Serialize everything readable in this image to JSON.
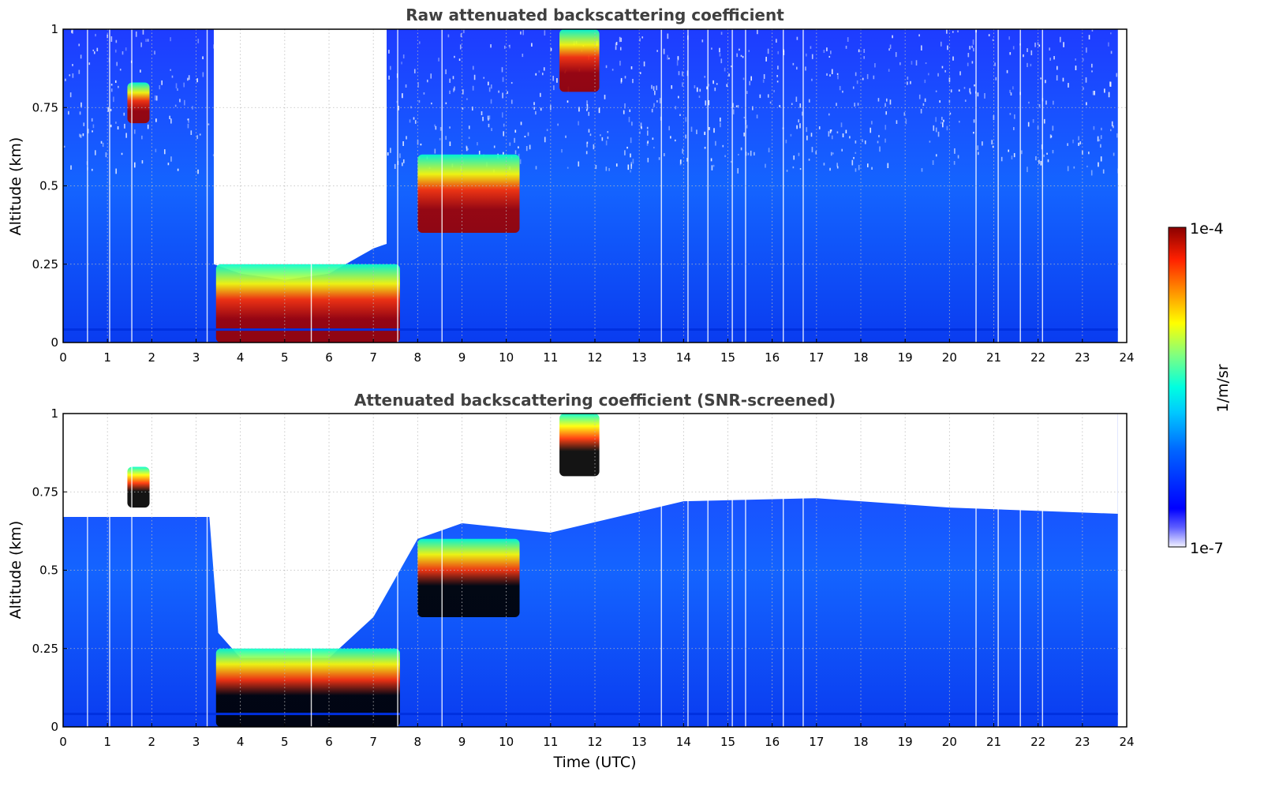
{
  "chart_data": [
    {
      "type": "heatmap",
      "title": "Raw attenuated backscattering coefficient",
      "xlabel": "",
      "ylabel": "Altitude (km)",
      "xlim": [
        0,
        24
      ],
      "ylim": [
        0,
        1
      ],
      "x_ticks": [
        "0",
        "1",
        "2",
        "3",
        "4",
        "5",
        "6",
        "7",
        "8",
        "9",
        "10",
        "11",
        "12",
        "13",
        "14",
        "15",
        "16",
        "17",
        "18",
        "19",
        "20",
        "21",
        "22",
        "23",
        "24"
      ],
      "y_ticks": [
        "0",
        "0.25",
        "0.5",
        "0.75",
        "1"
      ],
      "grid": true,
      "data_end_hour": 23.8,
      "boundary_layer_top_km": [
        {
          "t": 3.4,
          "z": 0.25
        },
        {
          "t": 4.0,
          "z": 0.22
        },
        {
          "t": 5.0,
          "z": 0.2
        },
        {
          "t": 6.0,
          "z": 0.22
        },
        {
          "t": 7.0,
          "z": 0.3
        },
        {
          "t": 8.0,
          "z": 0.35
        },
        {
          "t": 9.0,
          "z": 0.45
        },
        {
          "t": 10.0,
          "z": 0.5
        }
      ],
      "strong_echo_regions": [
        {
          "t_start": 1.45,
          "t_end": 1.95,
          "z_low": 0.7,
          "z_high": 0.83
        },
        {
          "t_start": 3.45,
          "t_end": 7.6,
          "z_low": 0.0,
          "z_high": 0.25
        },
        {
          "t_start": 8.0,
          "t_end": 10.3,
          "z_low": 0.35,
          "z_high": 0.6
        },
        {
          "t_start": 11.2,
          "t_end": 12.1,
          "z_low": 0.8,
          "z_high": 1.0
        }
      ],
      "clear_air_regions": [
        {
          "t_start": 3.4,
          "t_end": 7.3,
          "z_low": 0.22,
          "z_high": 1.0
        }
      ]
    },
    {
      "type": "heatmap",
      "title": "Attenuated backscattering coefficient (SNR-screened)",
      "xlabel": "Time (UTC)",
      "ylabel": "Altitude (km)",
      "xlim": [
        0,
        24
      ],
      "ylim": [
        0,
        1
      ],
      "x_ticks": [
        "0",
        "1",
        "2",
        "3",
        "4",
        "5",
        "6",
        "7",
        "8",
        "9",
        "10",
        "11",
        "12",
        "13",
        "14",
        "15",
        "16",
        "17",
        "18",
        "19",
        "20",
        "21",
        "22",
        "23",
        "24"
      ],
      "y_ticks": [
        "0",
        "0.25",
        "0.5",
        "0.75",
        "1"
      ],
      "grid": true,
      "data_end_hour": 23.8,
      "screened_top_km": [
        {
          "t": 0.0,
          "z": 0.67
        },
        {
          "t": 3.3,
          "z": 0.67
        },
        {
          "t": 3.5,
          "z": 0.3
        },
        {
          "t": 4.0,
          "z": 0.22
        },
        {
          "t": 6.0,
          "z": 0.22
        },
        {
          "t": 7.0,
          "z": 0.35
        },
        {
          "t": 8.0,
          "z": 0.6
        },
        {
          "t": 9.0,
          "z": 0.65
        },
        {
          "t": 11.0,
          "z": 0.62
        },
        {
          "t": 14.0,
          "z": 0.72
        },
        {
          "t": 17.0,
          "z": 0.73
        },
        {
          "t": 20.0,
          "z": 0.7
        },
        {
          "t": 23.8,
          "z": 0.68
        }
      ]
    }
  ],
  "colorbar": {
    "max_label": "1e-4",
    "min_label": "1e-7",
    "unit_label": "1/m/sr",
    "scale": "log",
    "colormap": [
      "#f2f2ff",
      "#6060ff",
      "#0000ff",
      "#0064ff",
      "#00c8ff",
      "#00ffe0",
      "#80ff80",
      "#ffff00",
      "#ff9000",
      "#ff2000",
      "#a00000",
      "#800000"
    ]
  },
  "colors": {
    "text": "#000000",
    "title_text": "#404040",
    "grid": "#bbbbbb",
    "background_fill": "#1550f0"
  }
}
